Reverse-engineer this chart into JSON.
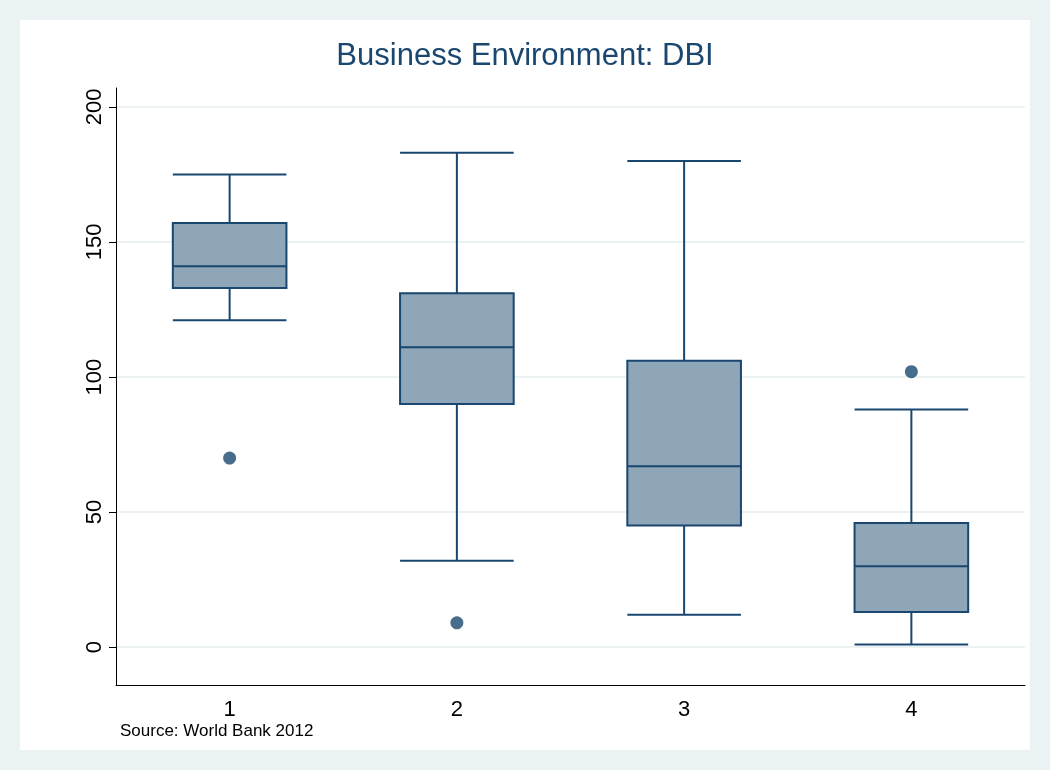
{
  "chart_data": {
    "type": "box",
    "title": "Business Environment: DBI",
    "categories": [
      "1",
      "2",
      "3",
      "4"
    ],
    "series": [
      {
        "color": "#8fa5b8",
        "boxes": [
          {
            "low": 121,
            "q1": 133,
            "median": 141,
            "q3": 157,
            "high": 175,
            "outliers": [
              70
            ]
          },
          {
            "low": 32,
            "q1": 90,
            "median": 111,
            "q3": 131,
            "high": 183,
            "outliers": [
              9
            ]
          },
          {
            "low": 12,
            "q1": 45,
            "median": 67,
            "q3": 106,
            "high": 180
          },
          {
            "low": 1,
            "q1": 13,
            "median": 30,
            "q3": 46,
            "high": 88,
            "outliers": [
              102
            ]
          }
        ]
      }
    ],
    "ylim": [
      -14,
      207
    ],
    "yticks": [
      0,
      50,
      100,
      150,
      200
    ],
    "grid": "y",
    "annotations": [
      "Source: World Bank 2012"
    ]
  }
}
